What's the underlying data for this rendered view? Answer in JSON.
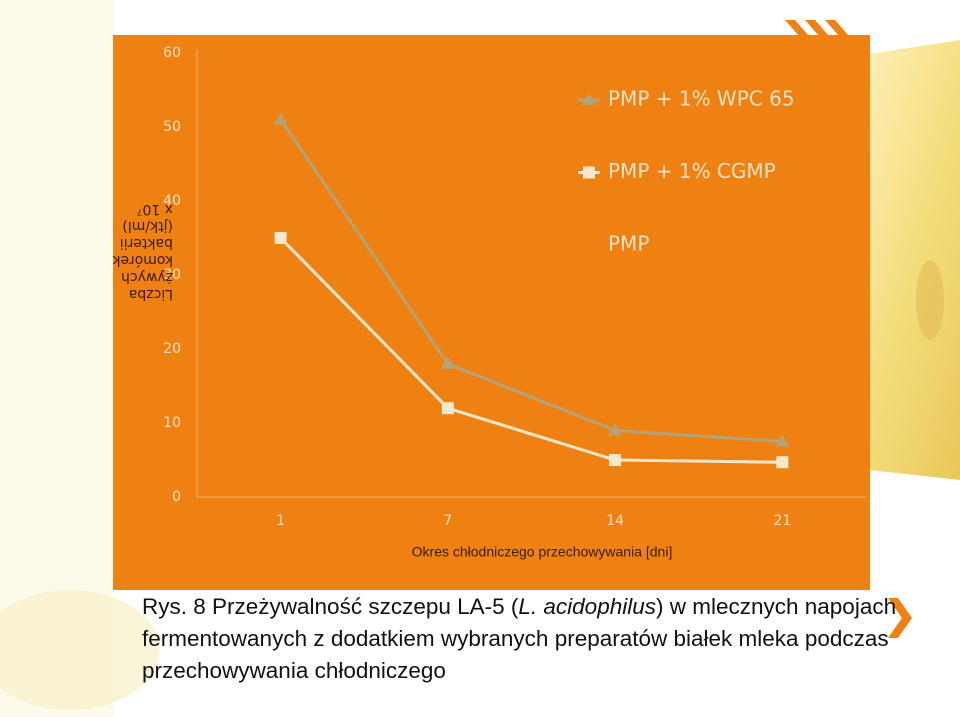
{
  "chart_data": {
    "type": "line",
    "x_label": "Okres chłodniczego przechowywania [dni]",
    "y_label": "Liczba żywych komórek bakterii (jtk/ml) x 10⁷",
    "categories": [
      "1",
      "7",
      "14",
      "21"
    ],
    "series": [
      {
        "name": "PMP + 1% WPC 65",
        "color": "#b3a37a",
        "marker": "triangle",
        "values": [
          51,
          18,
          9,
          7.5
        ]
      },
      {
        "name": "PMP + 1% CGMP",
        "color": "#f6e7cf",
        "marker": "square",
        "values": [
          35,
          12,
          5,
          4.7
        ]
      },
      {
        "name": "PMP",
        "color": "#ef8012",
        "marker": "none",
        "values": [
          null,
          null,
          null,
          null
        ]
      }
    ],
    "ylim": [
      0,
      60
    ],
    "yticks": [
      0,
      10,
      20,
      30,
      40,
      50,
      60
    ],
    "grid": false,
    "legend": "top-right"
  },
  "caption": {
    "prefix": "Rys. 8 Przeżywalność szczepu LA-5 (",
    "species": "L. acidophilus",
    "suffix": ") w mlecznych napojach fermentowanych z dodatkiem wybranych preparatów białek mleka podczas przechowywania chłodniczego"
  }
}
